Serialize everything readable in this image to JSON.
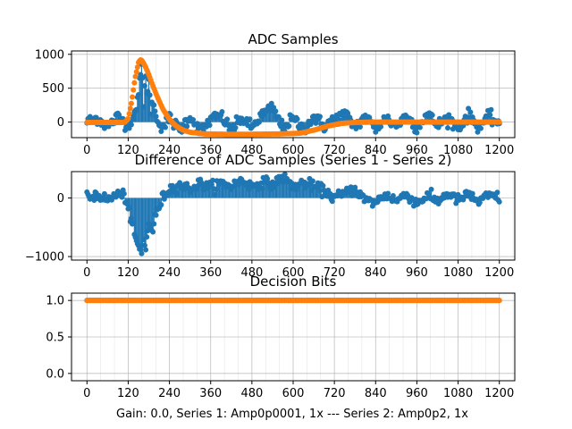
{
  "figure": {
    "caption": "Gain: 0.0, Series 1: Amp0p0001, 1x --- Series 2: Amp0p2, 1x"
  },
  "colors": {
    "series1": "#1f77b4",
    "series2": "#ff7f0e",
    "grid": "#b0b0b0"
  },
  "chart_data": [
    {
      "type": "scatter",
      "title": "ADC Samples",
      "xlabel": "",
      "ylabel": "",
      "xlim": [
        -45,
        1245
      ],
      "ylim": [
        -230,
        1050
      ],
      "xticks": [
        0,
        120,
        240,
        360,
        480,
        600,
        720,
        840,
        960,
        1080,
        1200
      ],
      "yticks": [
        0,
        500,
        1000
      ],
      "grid": true,
      "series": [
        {
          "style": "stem-markers",
          "description": "noisy baseline near 0 with spikes near 160-190 up to ~900",
          "x": [
            0,
            30,
            60,
            90,
            120,
            140,
            150,
            160,
            165,
            170,
            175,
            180,
            185,
            190,
            200,
            220,
            240,
            270,
            300,
            330,
            360,
            390,
            420,
            450,
            480,
            510,
            540,
            570,
            600,
            630,
            660,
            690,
            720,
            750,
            780,
            810,
            840,
            870,
            900,
            930,
            960,
            990,
            1020,
            1050,
            1080,
            1110,
            1140,
            1170,
            1200
          ],
          "y": [
            0,
            60,
            -70,
            80,
            -40,
            150,
            420,
            880,
            200,
            850,
            300,
            600,
            150,
            350,
            80,
            -80,
            60,
            -120,
            90,
            -150,
            40,
            100,
            -130,
            60,
            -80,
            110,
            210,
            -90,
            50,
            -110,
            80,
            -60,
            40,
            120,
            -70,
            80,
            -100,
            60,
            -60,
            90,
            -80,
            120,
            -50,
            70,
            -90,
            100,
            -60,
            80,
            -20
          ]
        },
        {
          "style": "markers",
          "description": "smooth pulse peaking ~920 at x~155, dipping to ~-180 near 360-600",
          "x": [
            0,
            40,
            80,
            110,
            120,
            130,
            140,
            150,
            155,
            160,
            170,
            180,
            190,
            200,
            220,
            240,
            260,
            280,
            300,
            340,
            400,
            480,
            560,
            620,
            660,
            700,
            740,
            780,
            840,
            900,
            1000,
            1100,
            1200
          ],
          "y": [
            -5,
            -5,
            -5,
            -5,
            50,
            300,
            650,
            880,
            920,
            910,
            820,
            700,
            560,
            430,
            200,
            40,
            -60,
            -120,
            -150,
            -175,
            -180,
            -180,
            -175,
            -165,
            -120,
            -60,
            -20,
            -5,
            0,
            0,
            0,
            0,
            0
          ]
        }
      ]
    },
    {
      "type": "scatter",
      "title": "Difference of ADC Samples (Series 1 - Series 2)",
      "xlabel": "",
      "ylabel": "",
      "xlim": [
        -45,
        1245
      ],
      "ylim": [
        -1060,
        450
      ],
      "xticks": [
        0,
        120,
        240,
        360,
        480,
        600,
        720,
        840,
        960,
        1080,
        1200
      ],
      "yticks": [
        -1000,
        0
      ],
      "grid": true,
      "series": [
        {
          "style": "stem-markers",
          "description": "difference signal",
          "x": [
            0,
            30,
            60,
            90,
            110,
            120,
            130,
            140,
            150,
            160,
            165,
            170,
            180,
            190,
            200,
            210,
            220,
            240,
            270,
            300,
            330,
            360,
            390,
            420,
            450,
            480,
            510,
            540,
            570,
            600,
            630,
            660,
            690,
            720,
            750,
            780,
            810,
            840,
            870,
            900,
            930,
            960,
            990,
            1020,
            1050,
            1080,
            1110,
            1140,
            1170,
            1200
          ],
          "y": [
            0,
            60,
            -40,
            80,
            30,
            -150,
            -450,
            -650,
            -850,
            -950,
            -700,
            -900,
            -400,
            -600,
            -300,
            -150,
            0,
            150,
            220,
            150,
            250,
            180,
            260,
            200,
            300,
            200,
            280,
            230,
            350,
            190,
            260,
            200,
            120,
            0,
            80,
            150,
            -40,
            -80,
            60,
            -50,
            70,
            -90,
            40,
            -60,
            80,
            -40,
            60,
            -70,
            50,
            0
          ]
        }
      ]
    },
    {
      "type": "scatter",
      "title": "Decision Bits",
      "xlabel": "",
      "ylabel": "",
      "xlim": [
        -45,
        1245
      ],
      "ylim": [
        -0.1,
        1.1
      ],
      "xticks": [
        0,
        120,
        240,
        360,
        480,
        600,
        720,
        840,
        960,
        1080,
        1200
      ],
      "yticks": [
        0.0,
        0.5,
        1.0
      ],
      "grid": true,
      "series": [
        {
          "style": "stem-markers",
          "description": "all ones",
          "x": [
            0,
            1200
          ],
          "y": [
            1,
            1
          ]
        },
        {
          "style": "markers",
          "description": "all ones",
          "x": [
            0,
            1200
          ],
          "y": [
            1,
            1
          ]
        }
      ]
    }
  ]
}
